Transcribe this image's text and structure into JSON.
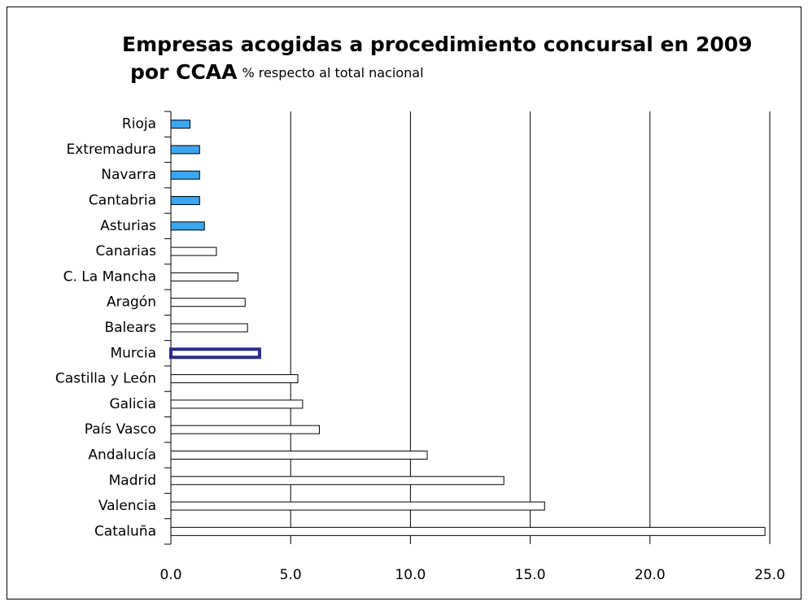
{
  "chart_data": {
    "type": "barh",
    "title": [
      "Empresas acogidas a procedimiento concursal en 2009",
      "por CCAA"
    ],
    "subtitle": "% respecto al total nacional",
    "categories": [
      "Rioja",
      "Extremadura",
      "Navarra",
      "Cantabria",
      "Asturias",
      "Canarias",
      "C.  La Mancha",
      "Aragón",
      "Balears",
      "Murcia",
      "Castilla y León",
      "Galicia",
      "País Vasco",
      "Andalucía",
      "Madrid",
      "Valencia",
      "Cataluña"
    ],
    "values": [
      0.8,
      1.2,
      1.2,
      1.2,
      1.4,
      1.9,
      2.8,
      3.1,
      3.2,
      3.7,
      5.3,
      5.5,
      6.2,
      10.7,
      13.9,
      15.6,
      24.8
    ],
    "colors": [
      "#3aa6f0",
      "#3aa6f0",
      "#3aa6f0",
      "#3aa6f0",
      "#3aa6f0",
      "#ffffff",
      "#ffffff",
      "#ffffff",
      "#ffffff",
      "#ffffff",
      "#ffffff",
      "#ffffff",
      "#ffffff",
      "#ffffff",
      "#ffffff",
      "#ffffff",
      "#ffffff"
    ],
    "edgecolors": [
      "#000000",
      "#000000",
      "#000000",
      "#000000",
      "#000000",
      "#000000",
      "#000000",
      "#000000",
      "#000000",
      "#2b2b8f",
      "#000000",
      "#000000",
      "#000000",
      "#000000",
      "#000000",
      "#000000",
      "#000000"
    ],
    "xlim": [
      0,
      25
    ],
    "xticks": [
      {
        "value": 0,
        "label": "0.0"
      },
      {
        "value": 5,
        "label": "5.0"
      },
      {
        "value": 10,
        "label": "10.0"
      },
      {
        "value": 15,
        "label": "15.0"
      },
      {
        "value": 20,
        "label": "20.0"
      },
      {
        "value": 25,
        "label": "25.0"
      }
    ],
    "grid": true
  }
}
